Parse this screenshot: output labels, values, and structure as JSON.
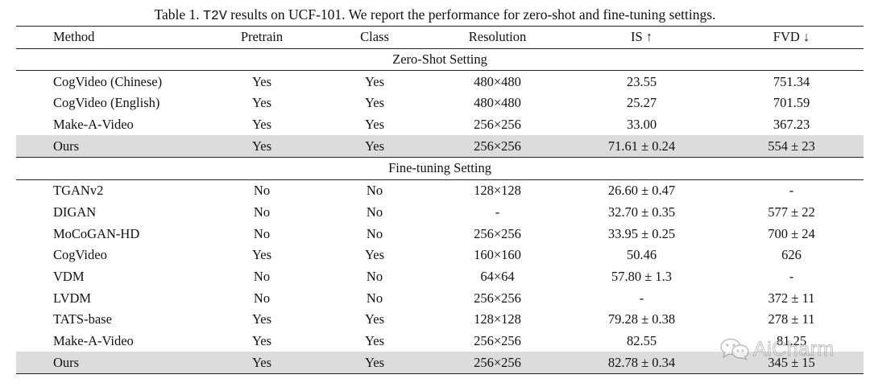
{
  "caption": {
    "prefix": "Table 1. ",
    "model_code": "T2V",
    "suffix": " results on UCF-101. We report the performance for zero-shot and fine-tuning settings."
  },
  "headers": {
    "method": "Method",
    "pretrain": "Pretrain",
    "class": "Class",
    "resolution": "Resolution",
    "is": "IS ↑",
    "fvd": "FVD ↓"
  },
  "sections": [
    {
      "title": "Zero-Shot Setting",
      "rows": [
        {
          "method": "CogVideo (Chinese)",
          "pretrain": "Yes",
          "class": "Yes",
          "resolution": "480×480",
          "is": "23.55",
          "fvd": "751.34",
          "highlight": false
        },
        {
          "method": "CogVideo (English)",
          "pretrain": "Yes",
          "class": "Yes",
          "resolution": "480×480",
          "is": "25.27",
          "fvd": "701.59",
          "highlight": false
        },
        {
          "method": "Make-A-Video",
          "pretrain": "Yes",
          "class": "Yes",
          "resolution": "256×256",
          "is": "33.00",
          "fvd": "367.23",
          "highlight": false
        },
        {
          "method": "Ours",
          "pretrain": "Yes",
          "class": "Yes",
          "resolution": "256×256",
          "is": "71.61 ± 0.24",
          "fvd": "554 ± 23",
          "highlight": true
        }
      ]
    },
    {
      "title": "Fine-tuning Setting",
      "rows": [
        {
          "method": "TGANv2",
          "pretrain": "No",
          "class": "No",
          "resolution": "128×128",
          "is": "26.60 ± 0.47",
          "fvd": "-",
          "highlight": false
        },
        {
          "method": "DIGAN",
          "pretrain": "No",
          "class": "No",
          "resolution": "-",
          "is": "32.70 ± 0.35",
          "fvd": "577 ± 22",
          "highlight": false
        },
        {
          "method": "MoCoGAN-HD",
          "pretrain": "No",
          "class": "No",
          "resolution": "256×256",
          "is": "33.95 ± 0.25",
          "fvd": "700 ± 24",
          "highlight": false
        },
        {
          "method": "CogVideo",
          "pretrain": "Yes",
          "class": "Yes",
          "resolution": "160×160",
          "is": "50.46",
          "fvd": "626",
          "highlight": false
        },
        {
          "method": "VDM",
          "pretrain": "No",
          "class": "No",
          "resolution": "64×64",
          "is": "57.80 ± 1.3",
          "fvd": "-",
          "highlight": false
        },
        {
          "method": "LVDM",
          "pretrain": "No",
          "class": "No",
          "resolution": "256×256",
          "is": "-",
          "fvd": "372 ± 11",
          "highlight": false
        },
        {
          "method": "TATS-base",
          "pretrain": "Yes",
          "class": "Yes",
          "resolution": "128×128",
          "is": "79.28 ± 0.38",
          "fvd": "278 ± 11",
          "highlight": false
        },
        {
          "method": "Make-A-Video",
          "pretrain": "Yes",
          "class": "Yes",
          "resolution": "256×256",
          "is": "82.55",
          "fvd": "81.25",
          "highlight": false
        },
        {
          "method": "Ours",
          "pretrain": "Yes",
          "class": "Yes",
          "resolution": "256×256",
          "is": "82.78 ± 0.34",
          "fvd": "345 ± 15",
          "highlight": true
        }
      ]
    }
  ],
  "watermark": {
    "text": "AiCharm",
    "icon": "wechat-icon"
  },
  "colors": {
    "highlight_row": "#dcdcdc",
    "rule": "#222222"
  }
}
